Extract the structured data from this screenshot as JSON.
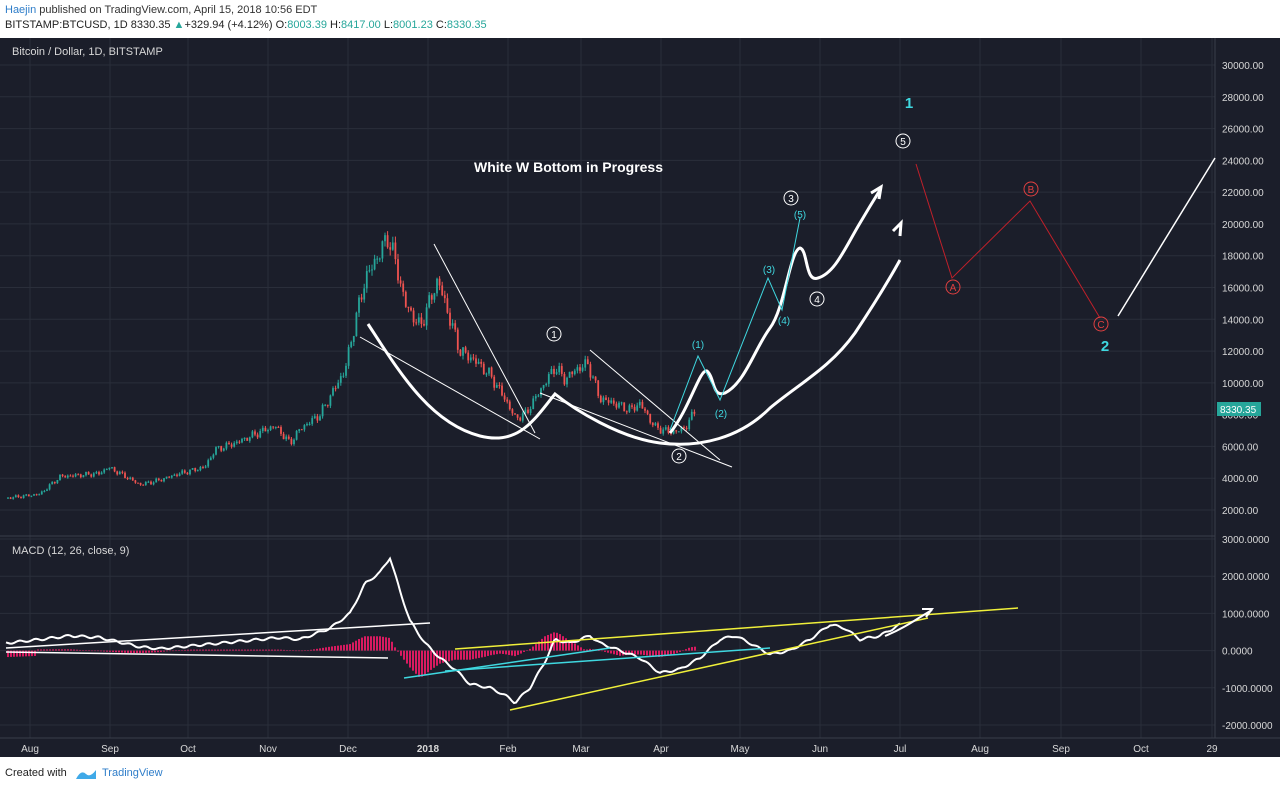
{
  "header": {
    "author": "Haejin",
    "published_text": "published on TradingView.com, April 15, 2018 10:56 EDT",
    "symbol": "BITSTAMP:BTCUSD, 1D",
    "last": "8330.35",
    "change_arrow": "▲",
    "change": "+329.94 (+4.12%)",
    "o_label": "O:",
    "o_value": "8003.39",
    "h_label": "H:",
    "h_value": "8417.00",
    "l_label": "L:",
    "l_value": "8001.23",
    "c_label": "C:",
    "c_value": "8330.35"
  },
  "colors": {
    "bg": "#1b1e2a",
    "up": "#26a69a",
    "down": "#ef5350",
    "white": "#ffffff",
    "cyan": "#3fd8e0",
    "red_path": "#c0202a",
    "yellow": "#f0f03a",
    "hist_neg": "#d81b60",
    "hist_pos": "#d81b60"
  },
  "chart_data": [
    {
      "type": "candlestick",
      "title": "Bitcoin / Dollar, 1D, BITSTAMP",
      "annotation_title": "White W Bottom in Progress",
      "price_label": "8330.35",
      "ylim": [
        500,
        31000
      ],
      "y_ticks": [
        "30000.00",
        "28000.00",
        "26000.00",
        "24000.00",
        "22000.00",
        "20000.00",
        "18000.00",
        "16000.00",
        "14000.00",
        "12000.00",
        "10000.00",
        "8000.00",
        "6000.00",
        "4000.00",
        "2000.00"
      ],
      "x_ticks": [
        "Aug",
        "Sep",
        "Oct",
        "Nov",
        "Dec",
        "2018",
        "Feb",
        "Mar",
        "Apr",
        "May",
        "Jun",
        "Jul",
        "Aug",
        "Sep",
        "Oct",
        "29"
      ],
      "series": [
        {
          "date": "Aug",
          "close": 2700
        },
        {
          "date": "Aug-mid",
          "close": 4100
        },
        {
          "date": "Sep",
          "close": 4700
        },
        {
          "date": "Sep-mid",
          "close": 3700
        },
        {
          "date": "Oct",
          "close": 4300
        },
        {
          "date": "Oct-mid",
          "close": 5600
        },
        {
          "date": "Nov",
          "close": 6900
        },
        {
          "date": "Nov-mid",
          "close": 7300
        },
        {
          "date": "Dec",
          "close": 10800
        },
        {
          "date": "Dec-peak",
          "close": 19200
        },
        {
          "date": "Jan",
          "close": 13500
        },
        {
          "date": "Jan-mid",
          "close": 11400
        },
        {
          "date": "Feb",
          "close": 7800
        },
        {
          "date": "Feb-mid",
          "close": 10200
        },
        {
          "date": "Mar",
          "close": 11000
        },
        {
          "date": "Mar-mid",
          "close": 8300
        },
        {
          "date": "Apr",
          "close": 6900
        },
        {
          "date": "Apr-15",
          "close": 8330
        }
      ],
      "wave_labels": {
        "circled_1": "1",
        "circled_2": "2",
        "circled_3": "3",
        "circled_4": "4",
        "circled_5": "5",
        "sub_1": "(1)",
        "sub_2": "(2)",
        "sub_3": "(3)",
        "sub_4": "(4)",
        "sub_5": "(5)",
        "big_1": "1",
        "big_2": "2",
        "corr_a": "A",
        "corr_b": "B",
        "corr_c": "C"
      }
    },
    {
      "type": "line",
      "title": "MACD (12, 26, close, 9)",
      "ylim": [
        -2300,
        3000
      ],
      "y_ticks": [
        "3000.0000",
        "2000.0000",
        "1000.0000",
        "0.0000",
        "-1000.0000",
        "-2000.0000"
      ]
    }
  ],
  "footer": {
    "created_with": "Created with",
    "brand": "TradingView"
  }
}
